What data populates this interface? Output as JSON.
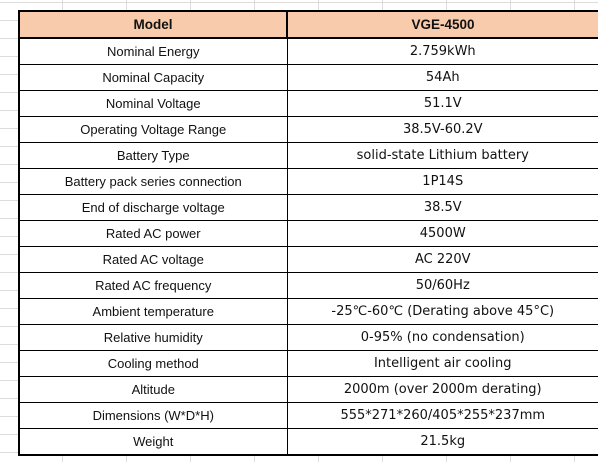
{
  "table": {
    "header": {
      "label": "Model",
      "value": "VGE-4500"
    },
    "rows": [
      {
        "label": "Nominal Energy",
        "value": "2.759kWh"
      },
      {
        "label": "Nominal Capacity",
        "value": "54Ah"
      },
      {
        "label": "Nominal Voltage",
        "value": "51.1V"
      },
      {
        "label": "Operating Voltage Range",
        "value": "38.5V-60.2V"
      },
      {
        "label": "Battery Type",
        "value": "solid-state Lithium battery"
      },
      {
        "label": "Battery pack series  connection",
        "value": "1P14S"
      },
      {
        "label": "End of discharge voltage",
        "value": "38.5V"
      },
      {
        "label": "Rated AC power",
        "value": "4500W"
      },
      {
        "label": "Rated AC voltage",
        "value": "AC 220V"
      },
      {
        "label": "Rated AC frequency",
        "value": "50/60Hz"
      },
      {
        "label": "Ambient temperature",
        "value": "-25℃-60℃ (Derating above 45°C)"
      },
      {
        "label": "Relative humidity",
        "value": "0-95% (no condensation)"
      },
      {
        "label": "Cooling method",
        "value": "Intelligent air cooling"
      },
      {
        "label": "Altitude",
        "value": "2000m (over 2000m derating)"
      },
      {
        "label": "Dimensions (W*D*H)",
        "value": "555*271*260/405*255*237mm"
      },
      {
        "label": "Weight",
        "value": "21.5kg"
      }
    ],
    "colors": {
      "header_fill": "#f8cbad",
      "border": "#000000",
      "gridline": "#dcdcdc"
    }
  }
}
